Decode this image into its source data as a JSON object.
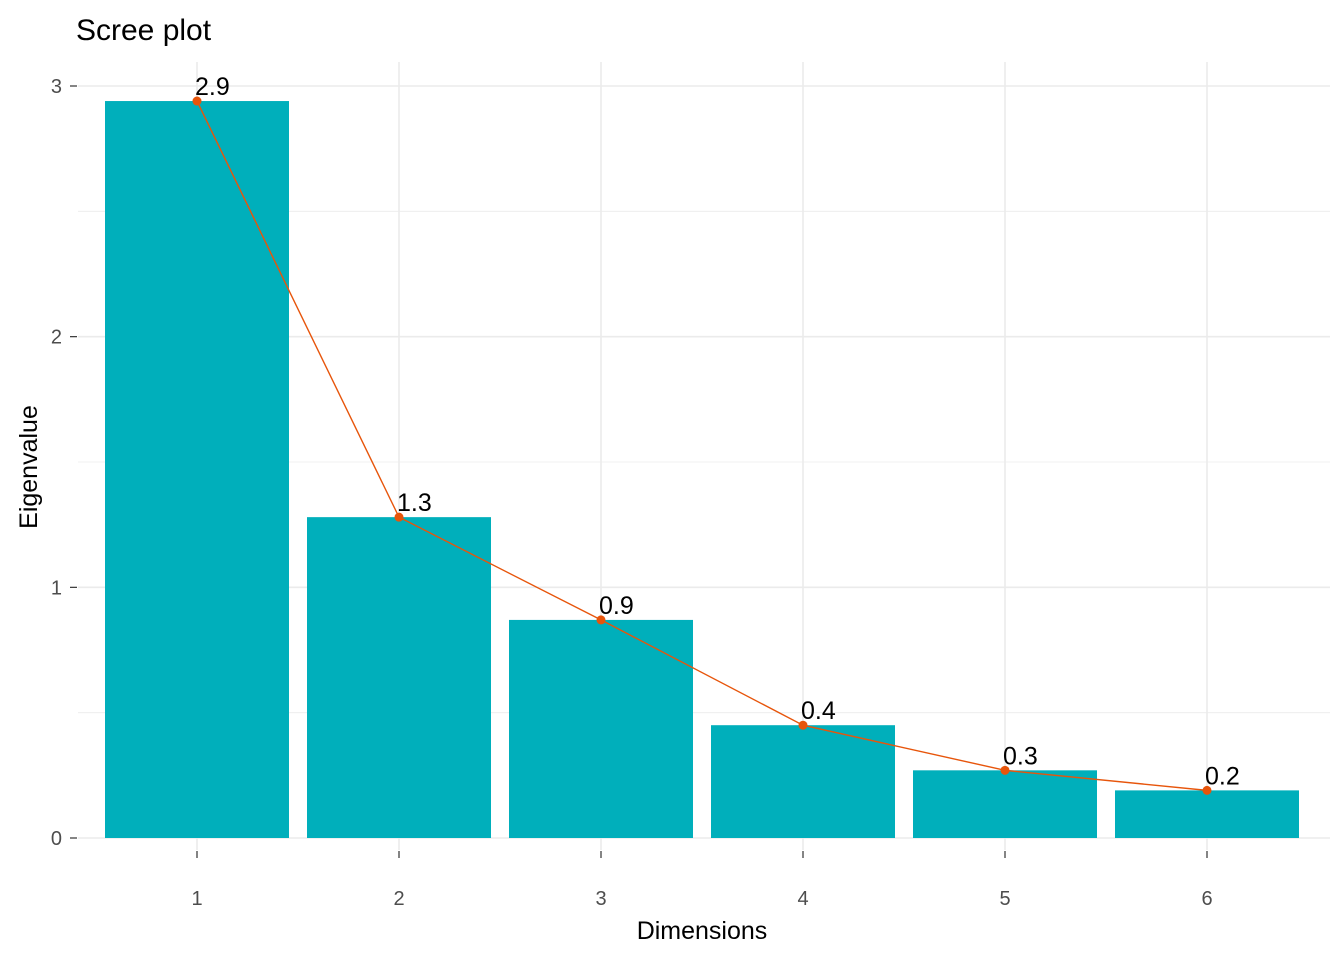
{
  "chart_data": {
    "type": "bar",
    "title": "Scree plot",
    "xlabel": "Dimensions",
    "ylabel": "Eigenvalue",
    "categories": [
      "1",
      "2",
      "3",
      "4",
      "5",
      "6"
    ],
    "values": [
      2.94,
      1.28,
      0.87,
      0.45,
      0.27,
      0.19
    ],
    "data_labels": [
      "2.9",
      "1.3",
      "0.9",
      "0.4",
      "0.3",
      "0.2"
    ],
    "ylim": [
      0,
      3
    ],
    "yticks": [
      "0",
      "1",
      "2",
      "3"
    ],
    "grid": true,
    "legend": "none",
    "line_overlay": true,
    "colors": {
      "bar": "#00AFBB",
      "line": "#E7550B",
      "grid": "#ebebeb"
    }
  }
}
